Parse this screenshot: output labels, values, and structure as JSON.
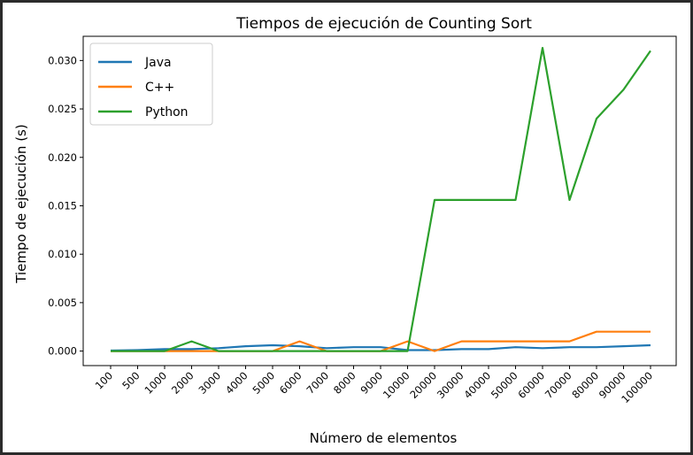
{
  "chart_data": {
    "type": "line",
    "title": "Tiempos de ejecución de Counting Sort",
    "xlabel": "Número de elementos",
    "ylabel": "Tiempo de ejecución (s)",
    "categories": [
      "100",
      "500",
      "1000",
      "2000",
      "3000",
      "4000",
      "5000",
      "6000",
      "7000",
      "8000",
      "9000",
      "10000",
      "20000",
      "30000",
      "40000",
      "50000",
      "60000",
      "70000",
      "80000",
      "90000",
      "100000"
    ],
    "ylim": [
      -0.0015,
      0.0325
    ],
    "yticks": [
      "0.000",
      "0.005",
      "0.010",
      "0.015",
      "0.020",
      "0.025",
      "0.030"
    ],
    "ytick_values": [
      0,
      0.005,
      0.01,
      0.015,
      0.02,
      0.025,
      0.03
    ],
    "grid": false,
    "legend_position": "top-left",
    "series": [
      {
        "name": "Java",
        "color": "#1f77b4",
        "values": [
          5e-05,
          0.0001,
          0.0002,
          0.0002,
          0.0003,
          0.0005,
          0.0006,
          0.0005,
          0.0003,
          0.0004,
          0.0004,
          0.0001,
          0.0001,
          0.0002,
          0.0002,
          0.0004,
          0.0003,
          0.0004,
          0.0004,
          0.0005,
          0.0006
        ]
      },
      {
        "name": "C++",
        "color": "#ff7f0e",
        "values": [
          0,
          0,
          0,
          0,
          0,
          0,
          0,
          0.001,
          0,
          0,
          0,
          0.001,
          0,
          0.001,
          0.001,
          0.001,
          0.001,
          0.001,
          0.002,
          0.002,
          0.002
        ]
      },
      {
        "name": "Python",
        "color": "#2ca02c",
        "values": [
          0,
          0,
          0,
          0.001,
          0,
          0,
          0,
          0,
          0,
          0,
          0,
          0,
          0.0156,
          0.0156,
          0.0156,
          0.0156,
          0.0313,
          0.0156,
          0.024,
          0.027,
          0.031
        ]
      }
    ]
  }
}
